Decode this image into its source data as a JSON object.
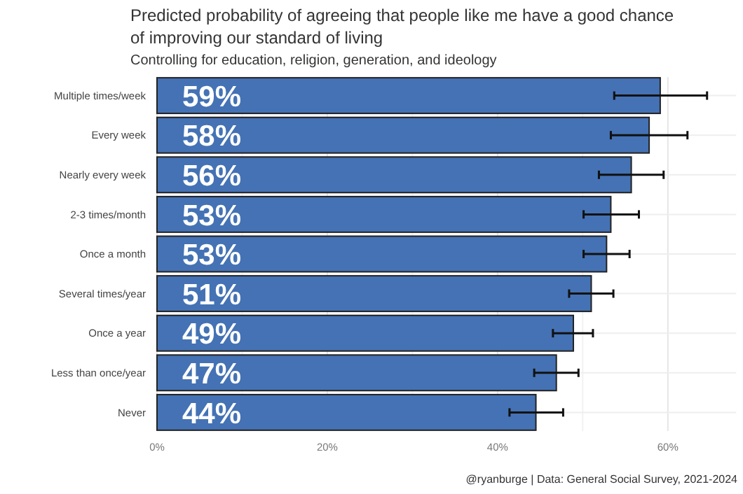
{
  "chart_data": {
    "type": "bar",
    "orientation": "horizontal",
    "title": "Predicted probability of agreeing that people like me have a good chance of improving our standard of living",
    "subtitle": "Controlling for education, religion, generation, and ideology",
    "categories": [
      "Multiple times/week",
      "Every week",
      "Nearly every week",
      "2-3 times/month",
      "Once a month",
      "Several times/year",
      "Once a year",
      "Less than once/year",
      "Never"
    ],
    "values": [
      59.1,
      57.8,
      55.7,
      53.3,
      52.8,
      51.0,
      48.9,
      46.9,
      44.5
    ],
    "value_labels": [
      "59%",
      "58%",
      "56%",
      "53%",
      "53%",
      "51%",
      "49%",
      "47%",
      "44%"
    ],
    "errors": [
      [
        53.7,
        64.6
      ],
      [
        53.3,
        62.3
      ],
      [
        51.9,
        59.5
      ],
      [
        50.1,
        56.6
      ],
      [
        50.1,
        55.5
      ],
      [
        48.4,
        53.6
      ],
      [
        46.5,
        51.2
      ],
      [
        44.3,
        49.5
      ],
      [
        41.4,
        47.7
      ]
    ],
    "color": "#4472b4",
    "xlim": [
      0,
      68
    ],
    "xticks": [
      {
        "value": 0,
        "label": "0%"
      },
      {
        "value": 10,
        "label": null
      },
      {
        "value": 20,
        "label": "20%"
      },
      {
        "value": 30,
        "label": null
      },
      {
        "value": 40,
        "label": "40%"
      },
      {
        "value": 50,
        "label": null
      },
      {
        "value": 60,
        "label": "60%"
      }
    ],
    "grid": true,
    "annotations": [
      "@ryanburge | Data: General Social Survey, 2021-2024"
    ]
  }
}
